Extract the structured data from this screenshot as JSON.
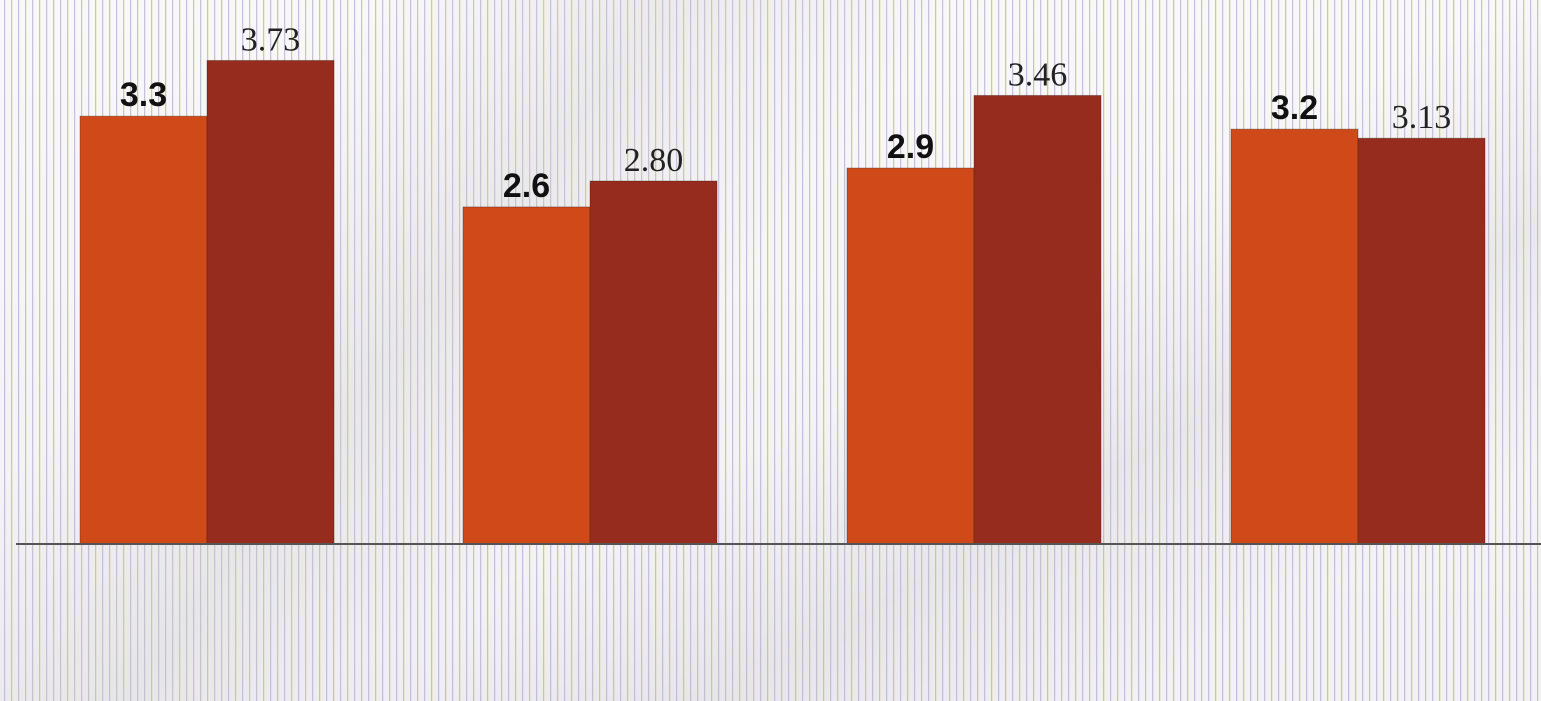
{
  "chart_data": {
    "type": "bar",
    "categories": [
      "",
      "",
      "",
      ""
    ],
    "series": [
      {
        "values": [
          3.3,
          2.6,
          2.9,
          3.2
        ],
        "labels": [
          "3.3",
          "2.6",
          "2.9",
          "3.2"
        ],
        "color": "#D04A19"
      },
      {
        "values": [
          3.73,
          2.8,
          3.46,
          3.13
        ],
        "labels": [
          "3.73",
          "2.80",
          "3.46",
          "3.13"
        ],
        "color": "#952C1E"
      }
    ],
    "ylim": [
      0,
      3.88
    ],
    "grid": false,
    "legend": "none",
    "baseline_color": "#555555"
  }
}
